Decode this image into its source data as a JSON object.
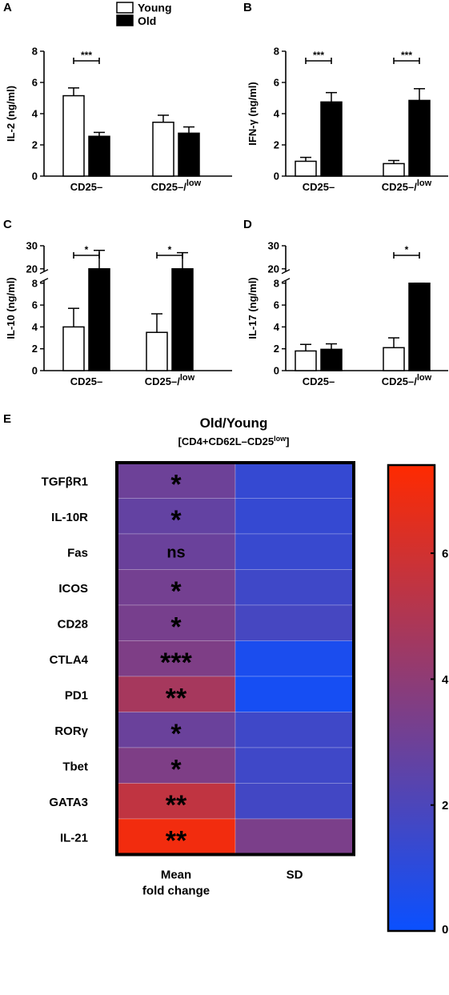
{
  "legend": [
    {
      "label": "Young",
      "fill": "#ffffff"
    },
    {
      "label": "Old",
      "fill": "#000000"
    }
  ],
  "chart_data": [
    {
      "panel": "A",
      "type": "bar",
      "ylabel": "IL-2 (ng/ml)",
      "categories": [
        "CD25–",
        "CD25–/low"
      ],
      "category_labels": [
        {
          "main": "CD25–",
          "sup": ""
        },
        {
          "main": "CD25–/",
          "sup": "low"
        }
      ],
      "series": [
        {
          "name": "Young",
          "values": [
            5.15,
            3.45
          ],
          "errors": [
            0.5,
            0.45
          ]
        },
        {
          "name": "Old",
          "values": [
            2.55,
            2.75
          ],
          "errors": [
            0.25,
            0.4
          ]
        }
      ],
      "ylim": [
        0,
        8
      ],
      "yticks": [
        "0",
        "2",
        "4",
        "6",
        "8"
      ],
      "significance": [
        {
          "category": 0,
          "label": "***"
        }
      ]
    },
    {
      "panel": "B",
      "type": "bar",
      "ylabel": "IFN-γ (ng/ml)",
      "categories": [
        "CD25–",
        "CD25–/low"
      ],
      "category_labels": [
        {
          "main": "CD25–",
          "sup": ""
        },
        {
          "main": "CD25–/",
          "sup": "low"
        }
      ],
      "series": [
        {
          "name": "Young",
          "values": [
            0.95,
            0.8
          ],
          "errors": [
            0.25,
            0.2
          ]
        },
        {
          "name": "Old",
          "values": [
            4.75,
            4.85
          ],
          "errors": [
            0.6,
            0.75
          ]
        }
      ],
      "ylim": [
        0,
        8
      ],
      "yticks": [
        "0",
        "2",
        "4",
        "6",
        "8"
      ],
      "significance": [
        {
          "category": 0,
          "label": "***"
        },
        {
          "category": 1,
          "label": "***"
        }
      ]
    },
    {
      "panel": "C",
      "type": "bar",
      "ylabel": "IL-10 (ng/ml)",
      "categories": [
        "CD25–",
        "CD25–/low"
      ],
      "category_labels": [
        {
          "main": "CD25–",
          "sup": ""
        },
        {
          "main": "CD25–/",
          "sup": "low"
        }
      ],
      "series": [
        {
          "name": "Young",
          "values": [
            4.0,
            3.5
          ],
          "errors": [
            1.7,
            1.7
          ]
        },
        {
          "name": "Old",
          "values": [
            20.0,
            20.0
          ],
          "errors": [
            8.0,
            7.0
          ]
        }
      ],
      "ylim": [
        0,
        30
      ],
      "axis_break": [
        8,
        20
      ],
      "yticks": [
        "0",
        "2",
        "4",
        "6",
        "8",
        "20",
        "30"
      ],
      "significance": [
        {
          "category": 0,
          "label": "*"
        },
        {
          "category": 1,
          "label": "*"
        }
      ]
    },
    {
      "panel": "D",
      "type": "bar",
      "ylabel": "IL-17 (ng/ml)",
      "categories": [
        "CD25–",
        "CD25–/low"
      ],
      "category_labels": [
        {
          "main": "CD25–",
          "sup": ""
        },
        {
          "main": "CD25–/",
          "sup": "low"
        }
      ],
      "series": [
        {
          "name": "Young",
          "values": [
            1.8,
            2.1
          ],
          "errors": [
            0.6,
            0.9
          ]
        },
        {
          "name": "Old",
          "values": [
            1.95,
            8.8
          ],
          "errors": [
            0.5,
            0.6
          ]
        }
      ],
      "ylim": [
        0,
        30
      ],
      "axis_break": [
        8,
        20
      ],
      "yticks": [
        "0",
        "2",
        "4",
        "6",
        "8",
        "20",
        "30"
      ],
      "significance": [
        {
          "category": 1,
          "label": "*"
        }
      ]
    },
    {
      "panel": "E",
      "type": "heatmap",
      "title": "Old/Young",
      "subtitle_main": "[CD4+CD62L–CD25",
      "subtitle_sup": "low",
      "subtitle_end": "]",
      "rows": [
        "TGFβR1",
        "IL-10R",
        "Fas",
        "ICOS",
        "CD28",
        "CTLA4",
        "PD1",
        "RORγ",
        "Tbet",
        "GATA3",
        "IL-21"
      ],
      "columns": [
        "Mean fold change",
        "SD"
      ],
      "column_labels": [
        [
          "Mean",
          "fold change"
        ],
        [
          "SD"
        ]
      ],
      "mean_values": [
        3.0,
        2.7,
        2.9,
        3.2,
        3.3,
        3.5,
        4.7,
        2.9,
        3.5,
        5.5,
        7.0
      ],
      "sd_values": [
        1.3,
        1.3,
        1.4,
        1.6,
        1.8,
        0.5,
        0.35,
        1.6,
        1.6,
        1.7,
        3.4
      ],
      "significance": [
        "*",
        "*",
        "ns",
        "*",
        "*",
        "***",
        "**",
        "*",
        "*",
        "**",
        "**"
      ],
      "colorbar": {
        "min": 0,
        "max": 7.4,
        "ticks": [
          0,
          2,
          4,
          6
        ],
        "low_color": "#0a50ff",
        "high_color": "#ff2a00"
      }
    }
  ]
}
